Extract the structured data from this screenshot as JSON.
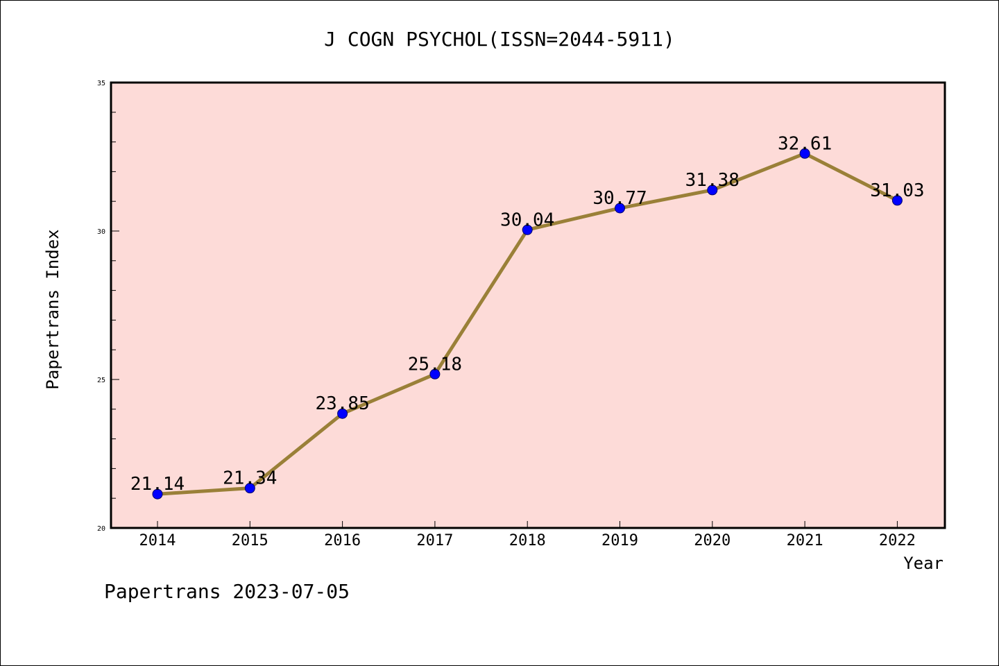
{
  "chart_data": {
    "type": "line",
    "title": "J COGN PSYCHOL(ISSN=2044-5911)",
    "xlabel": "Year",
    "ylabel": "Papertrans Index",
    "categories": [
      "2014",
      "2015",
      "2016",
      "2017",
      "2018",
      "2019",
      "2020",
      "2021",
      "2022"
    ],
    "series": [
      {
        "values": [
          21.14,
          21.34,
          23.85,
          25.18,
          30.04,
          30.77,
          31.38,
          32.61,
          31.03
        ],
        "labels": [
          "21.14",
          "21.34",
          "23.85",
          "25.18",
          "30.04",
          "30.77",
          "31.38",
          "32.61",
          "31.03"
        ]
      }
    ],
    "ylim": [
      20,
      35
    ],
    "yticks": [
      "20",
      "25",
      "30",
      "35"
    ],
    "y_minor_step": 1,
    "grid": false,
    "legend": "none",
    "colors": {
      "plot_background": "#fddbd8",
      "line": "#9a8038",
      "marker": "#0000ff",
      "axis": "#000000"
    }
  },
  "footer": "Papertrans 2023-07-05"
}
